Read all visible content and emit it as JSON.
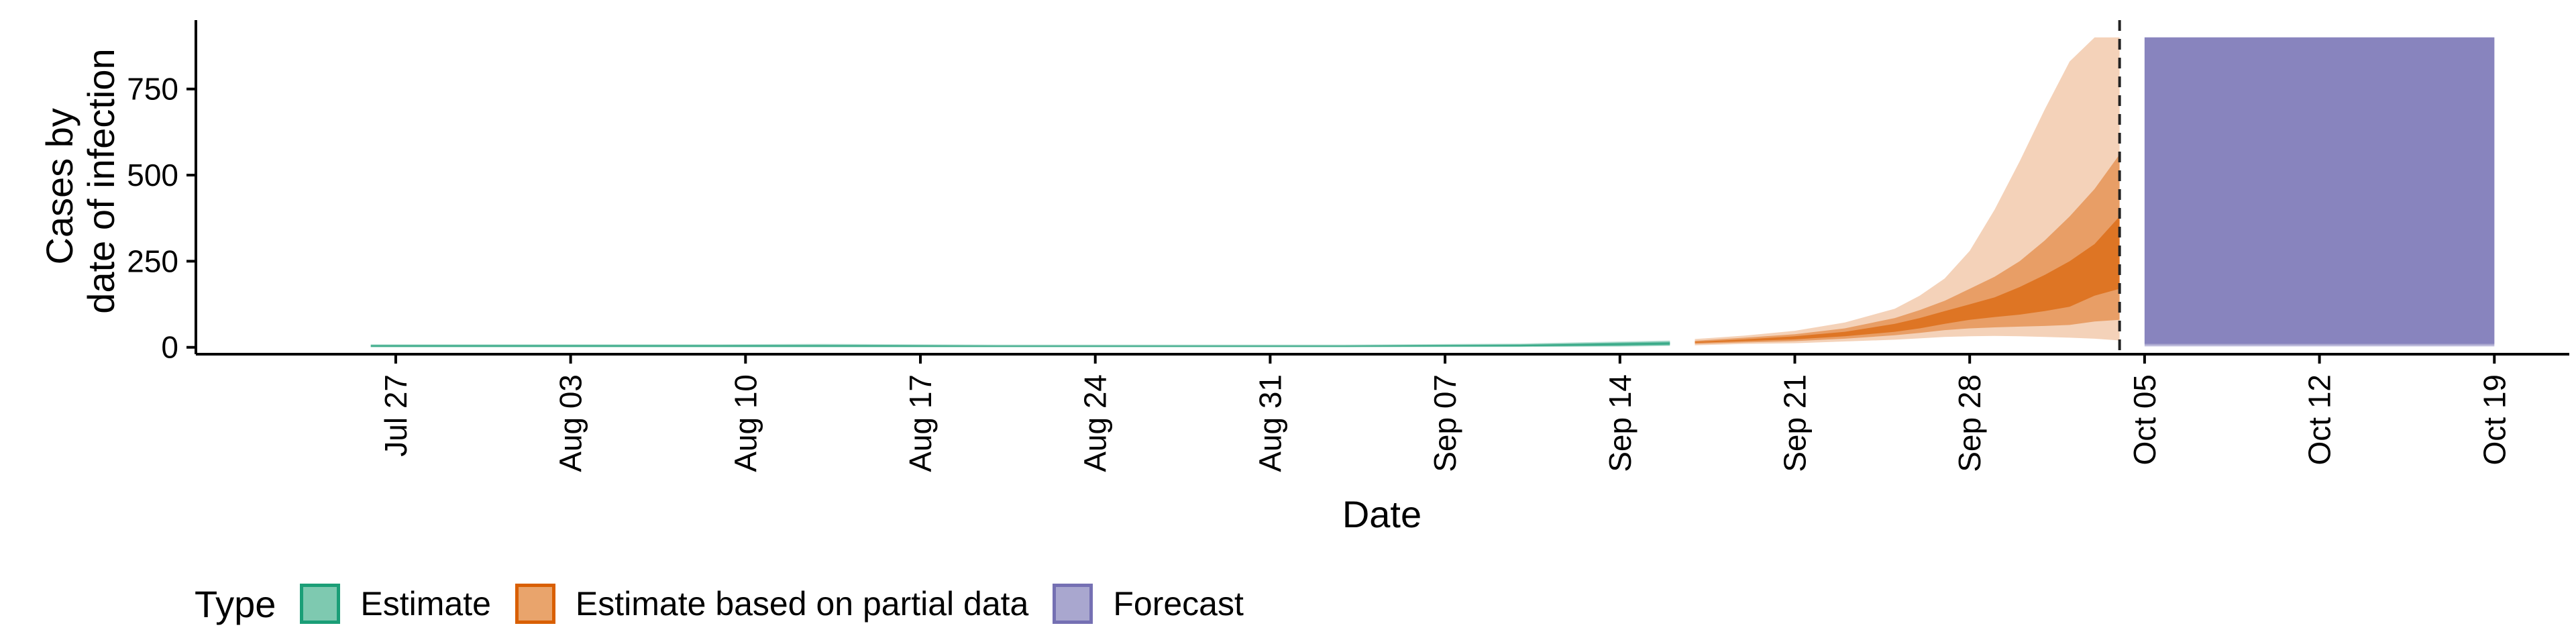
{
  "chart_data": {
    "type": "area",
    "xlabel": "Date",
    "ylabel": [
      "Cases by",
      "date of infection"
    ],
    "ylim": [
      -20,
      950
    ],
    "xlim": [
      "2020-07-19",
      "2020-10-22"
    ],
    "y_ticks": [
      0,
      250,
      500,
      750
    ],
    "x_ticks": [
      "2020-07-27",
      "2020-08-03",
      "2020-08-10",
      "2020-08-17",
      "2020-08-24",
      "2020-08-31",
      "2020-09-07",
      "2020-09-14",
      "2020-09-21",
      "2020-09-28",
      "2020-10-05",
      "2020-10-12",
      "2020-10-19"
    ],
    "x_tick_labels": [
      "Jul 27",
      "Aug 03",
      "Aug 10",
      "Aug 17",
      "Aug 24",
      "Aug 31",
      "Sep 07",
      "Sep 14",
      "Sep 21",
      "Sep 28",
      "Oct 05",
      "Oct 12",
      "Oct 19"
    ],
    "vline_date": "2020-10-04",
    "legend": {
      "title": "Type",
      "position": "bottom",
      "entries": [
        {
          "label": "Estimate",
          "fill": "#7ec9b0",
          "border": "#1b9e77"
        },
        {
          "label": "Estimate based on partial data",
          "fill": "#e9a46c",
          "border": "#d95f02"
        },
        {
          "label": "Forecast",
          "fill": "#a9a7cf",
          "border": "#7570b3"
        }
      ]
    },
    "series": [
      {
        "type_label": "Estimate",
        "color": "#1b9e77",
        "points": [
          {
            "date": "2020-07-26",
            "bands": [
              [
                2,
                6
              ],
              [
                1,
                7
              ],
              [
                0,
                9
              ]
            ]
          },
          {
            "date": "2020-08-02",
            "bands": [
              [
                2,
                6
              ],
              [
                1,
                7
              ],
              [
                0,
                9
              ]
            ]
          },
          {
            "date": "2020-08-09",
            "bands": [
              [
                2,
                6
              ],
              [
                1,
                7
              ],
              [
                0,
                9
              ]
            ]
          },
          {
            "date": "2020-08-13",
            "bands": [
              [
                2,
                6
              ],
              [
                1,
                8
              ],
              [
                0,
                10
              ]
            ]
          },
          {
            "date": "2020-08-20",
            "bands": [
              [
                2,
                5
              ],
              [
                1,
                6
              ],
              [
                0,
                8
              ]
            ]
          },
          {
            "date": "2020-08-27",
            "bands": [
              [
                2,
                5
              ],
              [
                1,
                6
              ],
              [
                0,
                8
              ]
            ]
          },
          {
            "date": "2020-09-03",
            "bands": [
              [
                2,
                5
              ],
              [
                1,
                6
              ],
              [
                0,
                8
              ]
            ]
          },
          {
            "date": "2020-09-10",
            "bands": [
              [
                3,
                7
              ],
              [
                2,
                9
              ],
              [
                1,
                11
              ]
            ]
          },
          {
            "date": "2020-09-14",
            "bands": [
              [
                6,
                12
              ],
              [
                4,
                14
              ],
              [
                2,
                17
              ]
            ]
          },
          {
            "date": "2020-09-16",
            "bands": [
              [
                8,
                14
              ],
              [
                6,
                17
              ],
              [
                4,
                20
              ]
            ]
          }
        ]
      },
      {
        "type_label": "Estimate based on partial data",
        "color": "#d95f02",
        "points": [
          {
            "date": "2020-09-17",
            "bands": [
              [
                13,
                16
              ],
              [
                10,
                19
              ],
              [
                6,
                24
              ]
            ]
          },
          {
            "date": "2020-09-19",
            "bands": [
              [
                18,
                23
              ],
              [
                14,
                28
              ],
              [
                10,
                34
              ]
            ]
          },
          {
            "date": "2020-09-21",
            "bands": [
              [
                23,
                32
              ],
              [
                18,
                38
              ],
              [
                12,
                48
              ]
            ]
          },
          {
            "date": "2020-09-23",
            "bands": [
              [
                32,
                45
              ],
              [
                25,
                55
              ],
              [
                17,
                72
              ]
            ]
          },
          {
            "date": "2020-09-25",
            "bands": [
              [
                45,
                68
              ],
              [
                35,
                85
              ],
              [
                22,
                112
              ]
            ]
          },
          {
            "date": "2020-09-26",
            "bands": [
              [
                55,
                85
              ],
              [
                42,
                108
              ],
              [
                26,
                150
              ]
            ]
          },
          {
            "date": "2020-09-27",
            "bands": [
              [
                68,
                105
              ],
              [
                50,
                135
              ],
              [
                30,
                200
              ]
            ]
          },
          {
            "date": "2020-09-28",
            "bands": [
              [
                80,
                125
              ],
              [
                55,
                170
              ],
              [
                32,
                280
              ]
            ]
          },
          {
            "date": "2020-09-29",
            "bands": [
              [
                88,
                145
              ],
              [
                58,
                205
              ],
              [
                33,
                400
              ]
            ]
          },
          {
            "date": "2020-09-30",
            "bands": [
              [
                95,
                175
              ],
              [
                60,
                250
              ],
              [
                32,
                540
              ]
            ]
          },
          {
            "date": "2020-10-01",
            "bands": [
              [
                105,
                210
              ],
              [
                62,
                310
              ],
              [
                30,
                690
              ]
            ]
          },
          {
            "date": "2020-10-02",
            "bands": [
              [
                118,
                250
              ],
              [
                65,
                380
              ],
              [
                28,
                830
              ]
            ]
          },
          {
            "date": "2020-10-03",
            "bands": [
              [
                150,
                300
              ],
              [
                75,
                460
              ],
              [
                25,
                900
              ]
            ]
          },
          {
            "date": "2020-10-04",
            "bands": [
              [
                170,
                380
              ],
              [
                80,
                560
              ],
              [
                20,
                900
              ]
            ]
          }
        ]
      },
      {
        "type_label": "Forecast",
        "color": "#7570b3",
        "points": [
          {
            "date": "2020-10-05",
            "bands": [
              [
                10,
                900
              ],
              [
                5,
                900
              ],
              [
                2,
                900
              ]
            ]
          },
          {
            "date": "2020-10-06",
            "bands": [
              [
                10,
                900
              ],
              [
                5,
                900
              ],
              [
                2,
                900
              ]
            ]
          },
          {
            "date": "2020-10-10",
            "bands": [
              [
                10,
                900
              ],
              [
                5,
                900
              ],
              [
                2,
                900
              ]
            ]
          },
          {
            "date": "2020-10-15",
            "bands": [
              [
                10,
                900
              ],
              [
                5,
                900
              ],
              [
                2,
                900
              ]
            ]
          },
          {
            "date": "2020-10-19",
            "bands": [
              [
                10,
                900
              ],
              [
                5,
                900
              ],
              [
                2,
                900
              ]
            ]
          }
        ]
      }
    ]
  }
}
